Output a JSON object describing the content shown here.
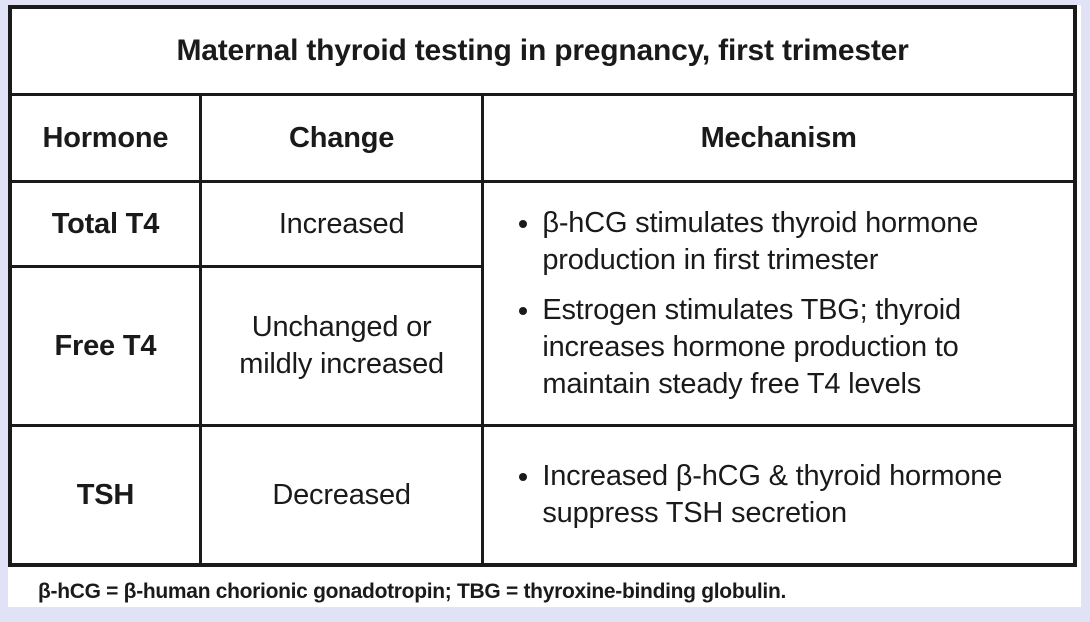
{
  "colors": {
    "page_background": "#e1e2f6",
    "card_background": "#ffffff",
    "border": "#1a1a1a",
    "text": "#1a1a1a"
  },
  "figure": {
    "title": "Maternal thyroid testing in pregnancy, first trimester",
    "columns": [
      "Hormone",
      "Change",
      "Mechanism"
    ],
    "rows": [
      {
        "hormone": "Total T4",
        "change": "Increased"
      },
      {
        "hormone": "Free T4",
        "change": "Unchanged or mildly increased"
      },
      {
        "hormone": "TSH",
        "change": "Decreased"
      }
    ],
    "mechanism_t4_bullets": [
      "β-hCG stimulates thyroid hormone production in first trimester",
      "Estrogen stimulates TBG; thyroid increases hormone production to maintain steady free T4 levels"
    ],
    "mechanism_tsh_bullets": [
      "Increased β-hCG & thyroid hormone suppress TSH secretion"
    ],
    "footnote": "β-hCG = β-human chorionic gonadotropin; TBG = thyroxine-binding globulin."
  }
}
